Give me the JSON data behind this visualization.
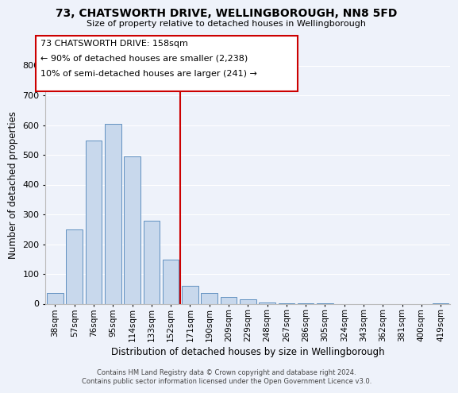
{
  "title_line1": "73, CHATSWORTH DRIVE, WELLINGBOROUGH, NN8 5FD",
  "title_line2": "Size of property relative to detached houses in Wellingborough",
  "xlabel": "Distribution of detached houses by size in Wellingborough",
  "ylabel": "Number of detached properties",
  "bar_labels": [
    "38sqm",
    "57sqm",
    "76sqm",
    "95sqm",
    "114sqm",
    "133sqm",
    "152sqm",
    "171sqm",
    "190sqm",
    "209sqm",
    "229sqm",
    "248sqm",
    "267sqm",
    "286sqm",
    "305sqm",
    "324sqm",
    "343sqm",
    "362sqm",
    "381sqm",
    "400sqm",
    "419sqm"
  ],
  "bar_values": [
    35,
    250,
    548,
    603,
    495,
    278,
    147,
    60,
    35,
    22,
    15,
    5,
    2,
    1,
    1,
    0,
    0,
    0,
    0,
    0,
    2
  ],
  "bar_color": "#c8d8ec",
  "bar_edge_color": "#6090c0",
  "vline_x": 6.5,
  "vline_color": "#cc0000",
  "annotation_text_line1": "73 CHATSWORTH DRIVE: 158sqm",
  "annotation_text_line2": "← 90% of detached houses are smaller (2,238)",
  "annotation_text_line3": "10% of semi-detached houses are larger (241) →",
  "ylim": [
    0,
    800
  ],
  "yticks": [
    0,
    100,
    200,
    300,
    400,
    500,
    600,
    700,
    800
  ],
  "background_color": "#eef2fa",
  "grid_color": "#ffffff",
  "footer_line1": "Contains HM Land Registry data © Crown copyright and database right 2024.",
  "footer_line2": "Contains public sector information licensed under the Open Government Licence v3.0."
}
